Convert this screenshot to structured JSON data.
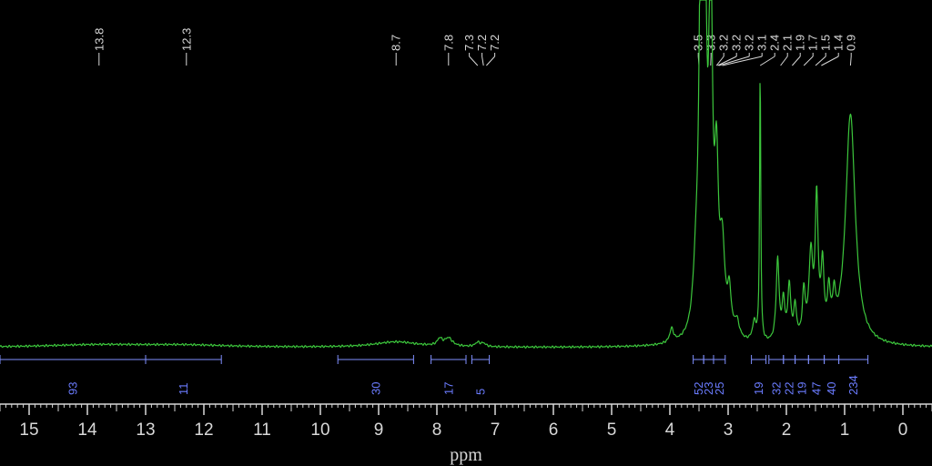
{
  "chart_data": {
    "type": "line",
    "xlabel": "ppm",
    "x_range": [
      15.5,
      -0.5
    ],
    "x_reversed": true,
    "ticks": [
      15,
      14,
      13,
      12,
      11,
      10,
      9,
      8,
      7,
      6,
      5,
      4,
      3,
      2,
      1,
      0
    ],
    "colors": {
      "background": "#000000",
      "spectrum": "#3cc63c",
      "text": "#d8d8d8",
      "integral": "#6b7cff"
    },
    "peak_labels": [
      {
        "text": "13.8",
        "ppm": 13.8
      },
      {
        "text": "12.3",
        "ppm": 12.3
      },
      {
        "text": "8.7",
        "ppm": 8.7
      },
      {
        "text": "7.8",
        "ppm": 7.8
      },
      {
        "text": "7.3",
        "ppm": 7.3
      },
      {
        "text": "7.2",
        "ppm": 7.2
      },
      {
        "text": "7.2",
        "ppm": 7.15
      },
      {
        "text": "3.5",
        "ppm": 3.5
      },
      {
        "text": "3.3",
        "ppm": 3.3
      },
      {
        "text": "3.2",
        "ppm": 3.2
      },
      {
        "text": "3.2",
        "ppm": 3.18
      },
      {
        "text": "3.2",
        "ppm": 3.16
      },
      {
        "text": "3.1",
        "ppm": 3.1
      },
      {
        "text": "2.4",
        "ppm": 2.45
      },
      {
        "text": "2.1",
        "ppm": 2.1
      },
      {
        "text": "1.9",
        "ppm": 1.9
      },
      {
        "text": "1.7",
        "ppm": 1.7
      },
      {
        "text": "1.5",
        "ppm": 1.5
      },
      {
        "text": "1.4",
        "ppm": 1.4
      },
      {
        "text": "0.9",
        "ppm": 0.9
      }
    ],
    "integrals": [
      {
        "label": "93",
        "from": 15.5,
        "to": 13.0
      },
      {
        "label": "11",
        "from": 13.0,
        "to": 11.7
      },
      {
        "label": "30",
        "from": 9.7,
        "to": 8.4
      },
      {
        "label": "17",
        "from": 8.1,
        "to": 7.5
      },
      {
        "label": "5",
        "from": 7.4,
        "to": 7.1
      },
      {
        "label": "52",
        "from": 3.6,
        "to": 3.42
      },
      {
        "label": "23",
        "from": 3.42,
        "to": 3.25
      },
      {
        "label": "25",
        "from": 3.25,
        "to": 3.05
      },
      {
        "label": "19",
        "from": 2.6,
        "to": 2.35
      },
      {
        "label": "32",
        "from": 2.3,
        "to": 2.05
      },
      {
        "label": "22",
        "from": 2.05,
        "to": 1.85
      },
      {
        "label": "19",
        "from": 1.85,
        "to": 1.62
      },
      {
        "label": "47",
        "from": 1.62,
        "to": 1.35
      },
      {
        "label": "40",
        "from": 1.35,
        "to": 1.1
      },
      {
        "label": "234",
        "from": 1.1,
        "to": 0.6
      }
    ],
    "peaks": [
      {
        "ppm": 13.8,
        "height": 0.01,
        "width": 1.2
      },
      {
        "ppm": 12.3,
        "height": 0.007,
        "width": 0.9
      },
      {
        "ppm": 8.7,
        "height": 0.02,
        "width": 0.45
      },
      {
        "ppm": 7.95,
        "height": 0.025,
        "width": 0.05
      },
      {
        "ppm": 7.8,
        "height": 0.03,
        "width": 0.08
      },
      {
        "ppm": 7.3,
        "height": 0.015,
        "width": 0.05
      },
      {
        "ppm": 7.2,
        "height": 0.012,
        "width": 0.05
      },
      {
        "ppm": 3.97,
        "height": 0.05,
        "width": 0.04
      },
      {
        "ppm": 3.55,
        "height": 0.2,
        "width": 0.06
      },
      {
        "ppm": 3.47,
        "height": 1.3,
        "width": 0.035
      },
      {
        "ppm": 3.4,
        "height": 1.3,
        "width": 0.035
      },
      {
        "ppm": 3.3,
        "height": 1.3,
        "width": 0.035
      },
      {
        "ppm": 3.2,
        "height": 0.55,
        "width": 0.04
      },
      {
        "ppm": 3.1,
        "height": 0.3,
        "width": 0.05
      },
      {
        "ppm": 2.98,
        "height": 0.15,
        "width": 0.04
      },
      {
        "ppm": 2.85,
        "height": 0.06,
        "width": 0.05
      },
      {
        "ppm": 2.55,
        "height": 0.07,
        "width": 0.04
      },
      {
        "ppm": 2.45,
        "height": 1.0,
        "width": 0.012
      },
      {
        "ppm": 2.15,
        "height": 0.3,
        "width": 0.03
      },
      {
        "ppm": 2.05,
        "height": 0.14,
        "width": 0.03
      },
      {
        "ppm": 1.95,
        "height": 0.2,
        "width": 0.03
      },
      {
        "ppm": 1.85,
        "height": 0.12,
        "width": 0.03
      },
      {
        "ppm": 1.7,
        "height": 0.17,
        "width": 0.03
      },
      {
        "ppm": 1.58,
        "height": 0.3,
        "width": 0.04
      },
      {
        "ppm": 1.48,
        "height": 0.5,
        "width": 0.03
      },
      {
        "ppm": 1.38,
        "height": 0.25,
        "width": 0.03
      },
      {
        "ppm": 1.27,
        "height": 0.15,
        "width": 0.03
      },
      {
        "ppm": 1.18,
        "height": 0.12,
        "width": 0.03
      },
      {
        "ppm": 0.9,
        "height": 0.85,
        "width": 0.1
      }
    ]
  }
}
